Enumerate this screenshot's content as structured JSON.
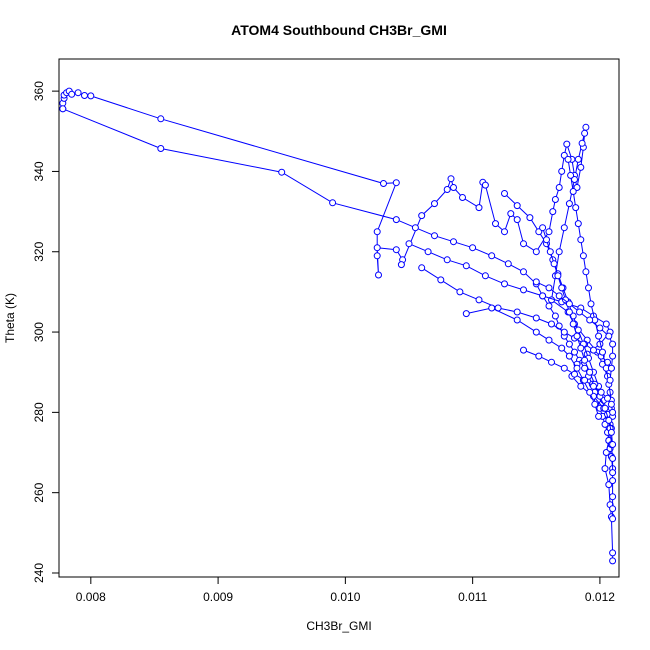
{
  "chart_data": {
    "type": "line",
    "title": "ATOM4 Southbound CH3Br_GMI",
    "xlabel": "CH3Br_GMI",
    "ylabel": "Theta (K)",
    "xlim": [
      0.00775,
      0.01215
    ],
    "ylim": [
      239,
      368
    ],
    "xticks": [
      0.008,
      0.009,
      0.01,
      0.011,
      0.012
    ],
    "xtick_labels": [
      "0.008",
      "0.009",
      "0.010",
      "0.011",
      "0.012"
    ],
    "yticks": [
      240,
      260,
      280,
      300,
      320,
      340,
      360
    ],
    "ytick_labels": [
      "240",
      "260",
      "280",
      "300",
      "320",
      "340",
      "360"
    ],
    "grid": false,
    "legend": "none",
    "marker": "open-circle",
    "color": "#0000ff",
    "series": [
      {
        "values": [
          [
            0.00778,
            355.6
          ],
          [
            0.00778,
            357.0
          ],
          [
            0.00779,
            358.2
          ],
          [
            0.00779,
            359.0
          ],
          [
            0.00781,
            359.6
          ],
          [
            0.00783,
            360.0
          ],
          [
            0.00785,
            359.2
          ],
          [
            0.0079,
            359.6
          ],
          [
            0.00795,
            358.9
          ],
          [
            0.008,
            358.8
          ],
          [
            0.00855,
            353.1
          ],
          [
            0.0103,
            337.0
          ],
          [
            0.0104,
            337.2
          ],
          [
            0.01025,
            325.0
          ],
          [
            0.01025,
            319.0
          ],
          [
            0.01026,
            314.2
          ],
          [
            0.01025,
            321.0
          ],
          [
            0.0104,
            320.5
          ],
          [
            0.01045,
            318.0
          ],
          [
            0.01044,
            316.8
          ],
          [
            0.0106,
            329.0
          ],
          [
            0.0107,
            332.0
          ],
          [
            0.0108,
            335.5
          ],
          [
            0.01083,
            338.2
          ],
          [
            0.01085,
            336.0
          ],
          [
            0.01092,
            333.5
          ],
          [
            0.01105,
            331.0
          ],
          [
            0.01108,
            337.3
          ],
          [
            0.0111,
            336.6
          ],
          [
            0.01118,
            327.0
          ],
          [
            0.01125,
            325.0
          ],
          [
            0.0113,
            329.5
          ],
          [
            0.01135,
            328.0
          ],
          [
            0.0114,
            322.0
          ],
          [
            0.0115,
            320.0
          ],
          [
            0.0116,
            325.0
          ],
          [
            0.01163,
            330.0
          ],
          [
            0.01165,
            333.0
          ],
          [
            0.01168,
            336.0
          ],
          [
            0.0117,
            340.0
          ],
          [
            0.01172,
            344.0
          ],
          [
            0.01174,
            346.8
          ],
          [
            0.01178,
            343.0
          ],
          [
            0.0118,
            339.0
          ],
          [
            0.01182,
            336.0
          ],
          [
            0.01185,
            341.0
          ],
          [
            0.01187,
            346.0
          ],
          [
            0.01188,
            349.5
          ],
          [
            0.01189,
            351.0
          ],
          [
            0.01186,
            347.0
          ],
          [
            0.01183,
            343.0
          ],
          [
            0.0118,
            338.0
          ],
          [
            0.01176,
            332.0
          ],
          [
            0.01172,
            326.0
          ],
          [
            0.01168,
            320.0
          ],
          [
            0.01165,
            314.0
          ],
          [
            0.01162,
            308.0
          ],
          [
            0.01175,
            305.0
          ],
          [
            0.0118,
            302.0
          ],
          [
            0.0119,
            298.0
          ],
          [
            0.01198,
            295.0
          ],
          [
            0.01202,
            292.0
          ],
          [
            0.01206,
            289.0
          ],
          [
            0.01208,
            285.0
          ],
          [
            0.01209,
            281.0
          ],
          [
            0.01208,
            277.0
          ],
          [
            0.01207,
            273.0
          ],
          [
            0.01205,
            270.0
          ],
          [
            0.01204,
            266.0
          ],
          [
            0.01207,
            262.0
          ],
          [
            0.01208,
            257.0
          ],
          [
            0.01209,
            254.0
          ],
          [
            0.0121,
            245.0
          ],
          [
            0.0121,
            243.0
          ]
        ]
      },
      {
        "values": [
          [
            0.00778,
            355.6
          ],
          [
            0.00855,
            345.7
          ],
          [
            0.0095,
            339.8
          ],
          [
            0.0099,
            332.2
          ],
          [
            0.0104,
            328.0
          ],
          [
            0.01055,
            326.0
          ],
          [
            0.0107,
            324.0
          ],
          [
            0.01085,
            322.5
          ],
          [
            0.011,
            321.0
          ],
          [
            0.01115,
            319.0
          ],
          [
            0.01128,
            317.0
          ],
          [
            0.0114,
            315.0
          ],
          [
            0.0115,
            312.0
          ],
          [
            0.01155,
            309.0
          ],
          [
            0.0116,
            306.5
          ],
          [
            0.01165,
            304.0
          ],
          [
            0.01168,
            301.5
          ],
          [
            0.01172,
            299.0
          ],
          [
            0.01176,
            297.0
          ],
          [
            0.0118,
            295.0
          ],
          [
            0.01184,
            293.0
          ],
          [
            0.01188,
            291.0
          ],
          [
            0.01191,
            289.0
          ],
          [
            0.01194,
            287.0
          ],
          [
            0.01196,
            285.0
          ],
          [
            0.01198,
            283.0
          ],
          [
            0.012,
            281.0
          ],
          [
            0.01202,
            279.0
          ],
          [
            0.01204,
            277.0
          ],
          [
            0.01206,
            275.0
          ],
          [
            0.01207,
            273.0
          ],
          [
            0.01208,
            271.0
          ],
          [
            0.01209,
            269.0
          ],
          [
            0.0121,
            266.0
          ],
          [
            0.0121,
            263.0
          ],
          [
            0.0121,
            259.0
          ],
          [
            0.0121,
            256.0
          ],
          [
            0.0121,
            253.5
          ]
        ]
      },
      {
        "values": [
          [
            0.0105,
            322.0
          ],
          [
            0.01065,
            320.0
          ],
          [
            0.0108,
            318.0
          ],
          [
            0.01095,
            316.5
          ],
          [
            0.0111,
            314.0
          ],
          [
            0.01125,
            312.0
          ],
          [
            0.0114,
            310.5
          ],
          [
            0.01155,
            309.0
          ],
          [
            0.0117,
            307.5
          ],
          [
            0.01185,
            306.0
          ],
          [
            0.01195,
            304.0
          ],
          [
            0.01205,
            302.0
          ],
          [
            0.01208,
            300.0
          ],
          [
            0.012,
            297.0
          ],
          [
            0.0119,
            294.5
          ],
          [
            0.01182,
            292.0
          ],
          [
            0.01178,
            289.0
          ],
          [
            0.01185,
            286.5
          ],
          [
            0.01195,
            284.0
          ],
          [
            0.01203,
            281.0
          ],
          [
            0.01207,
            278.5
          ],
          [
            0.01209,
            276.0
          ]
        ]
      },
      {
        "values": [
          [
            0.0106,
            316.0
          ],
          [
            0.01075,
            313.0
          ],
          [
            0.0109,
            310.0
          ],
          [
            0.01105,
            308.0
          ],
          [
            0.0112,
            306.0
          ],
          [
            0.01135,
            305.0
          ],
          [
            0.0115,
            303.5
          ],
          [
            0.01162,
            302.0
          ],
          [
            0.01172,
            300.0
          ],
          [
            0.0118,
            298.5
          ],
          [
            0.01188,
            297.0
          ],
          [
            0.01195,
            295.5
          ],
          [
            0.01201,
            294.0
          ],
          [
            0.01206,
            292.5
          ],
          [
            0.01209,
            291.0
          ]
        ]
      },
      {
        "values": [
          [
            0.01095,
            304.6
          ],
          [
            0.01115,
            306.0
          ],
          [
            0.01135,
            303.0
          ],
          [
            0.0115,
            300.0
          ],
          [
            0.0116,
            298.0
          ],
          [
            0.0117,
            296.0
          ],
          [
            0.01176,
            294.0
          ],
          [
            0.01182,
            291.0
          ],
          [
            0.01187,
            288.0
          ],
          [
            0.01192,
            285.0
          ],
          [
            0.01196,
            282.0
          ],
          [
            0.01199,
            279.0
          ]
        ]
      },
      {
        "values": [
          [
            0.01125,
            334.5
          ],
          [
            0.01135,
            331.5
          ],
          [
            0.01145,
            328.5
          ],
          [
            0.01152,
            325.0
          ],
          [
            0.01158,
            322.0
          ],
          [
            0.01163,
            318.0
          ],
          [
            0.01167,
            314.5
          ],
          [
            0.01171,
            311.0
          ],
          [
            0.01175,
            307.5
          ],
          [
            0.01179,
            304.0
          ],
          [
            0.01183,
            300.5
          ],
          [
            0.01187,
            297.0
          ],
          [
            0.01191,
            293.5
          ],
          [
            0.01195,
            290.0
          ],
          [
            0.01199,
            286.5
          ],
          [
            0.01203,
            283.0
          ],
          [
            0.01206,
            279.5
          ],
          [
            0.01208,
            276.0
          ],
          [
            0.01209,
            272.0
          ],
          [
            0.0121,
            268.5
          ],
          [
            0.0121,
            265.0
          ]
        ]
      },
      {
        "values": [
          [
            0.01175,
            343.0
          ],
          [
            0.01177,
            339.0
          ],
          [
            0.01179,
            335.0
          ],
          [
            0.01181,
            331.0
          ],
          [
            0.01183,
            327.0
          ],
          [
            0.01185,
            323.0
          ],
          [
            0.01187,
            319.0
          ],
          [
            0.01189,
            315.0
          ],
          [
            0.01191,
            311.0
          ],
          [
            0.01193,
            307.0
          ],
          [
            0.01196,
            303.0
          ],
          [
            0.01199,
            299.0
          ],
          [
            0.01202,
            295.0
          ],
          [
            0.01205,
            291.0
          ],
          [
            0.01207,
            287.0
          ],
          [
            0.01209,
            283.0
          ],
          [
            0.0121,
            279.0
          ]
        ]
      },
      {
        "values": [
          [
            0.01155,
            326.0
          ],
          [
            0.01158,
            323.0
          ],
          [
            0.01161,
            320.0
          ],
          [
            0.01164,
            317.0
          ],
          [
            0.01167,
            314.0
          ],
          [
            0.0117,
            311.0
          ],
          [
            0.01173,
            308.0
          ],
          [
            0.01176,
            305.0
          ],
          [
            0.01179,
            302.0
          ],
          [
            0.01182,
            299.0
          ],
          [
            0.01185,
            296.0
          ],
          [
            0.01188,
            293.0
          ],
          [
            0.01192,
            290.0
          ],
          [
            0.01196,
            287.0
          ],
          [
            0.012,
            284.0
          ],
          [
            0.01204,
            281.0
          ],
          [
            0.01207,
            278.0
          ],
          [
            0.01209,
            275.0
          ],
          [
            0.0121,
            272.0
          ]
        ]
      },
      {
        "values": [
          [
            0.0115,
            312.5
          ],
          [
            0.0116,
            311.0
          ],
          [
            0.01168,
            309.0
          ],
          [
            0.01176,
            307.0
          ],
          [
            0.01184,
            305.0
          ],
          [
            0.01192,
            303.0
          ],
          [
            0.012,
            301.0
          ],
          [
            0.01207,
            299.0
          ],
          [
            0.0121,
            297.0
          ],
          [
            0.0121,
            294.0
          ],
          [
            0.01209,
            291.0
          ],
          [
            0.01208,
            288.0
          ]
        ]
      },
      {
        "values": [
          [
            0.0114,
            295.5
          ],
          [
            0.01152,
            294.0
          ],
          [
            0.01162,
            292.5
          ],
          [
            0.01172,
            291.0
          ],
          [
            0.0118,
            289.5
          ],
          [
            0.01188,
            288.0
          ],
          [
            0.01195,
            286.5
          ],
          [
            0.01201,
            285.0
          ],
          [
            0.01206,
            283.5
          ],
          [
            0.01209,
            282.0
          ],
          [
            0.0121,
            280.0
          ]
        ]
      }
    ]
  }
}
